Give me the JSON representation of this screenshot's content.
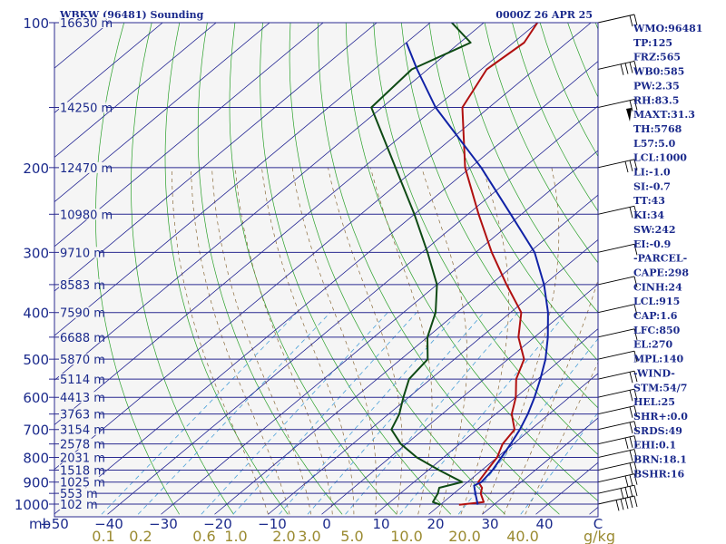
{
  "chart_data": {
    "type": "line",
    "chart_kind": "skew-t log-p sounding",
    "title_left": "WBKW (96481) Sounding",
    "title_right": "0000Z 26 APR 25",
    "pressure_axis_label": "mb",
    "pressure_ticks": [
      100,
      200,
      300,
      400,
      500,
      600,
      700,
      800,
      900,
      1000
    ],
    "pressure_range_mb": [
      1050,
      100
    ],
    "temperature_axis_unit": "C",
    "temperature_ticks": [
      -50,
      -40,
      -30,
      -20,
      -10,
      0,
      10,
      20,
      30,
      40
    ],
    "temperature_range_c": [
      -50,
      50
    ],
    "mixing_ratio_unit": "g/kg",
    "mixing_ratio_labels": [
      "0.1",
      "0.2",
      "0.6",
      "1.0",
      "2.0",
      "3.0",
      "5.0",
      "10.0",
      "20.0",
      "40.0"
    ],
    "height_labels": [
      {
        "p": 100,
        "text": "16630 m"
      },
      {
        "p": 150,
        "text": "14250 m"
      },
      {
        "p": 200,
        "text": "12470 m"
      },
      {
        "p": 250,
        "text": "10980 m"
      },
      {
        "p": 300,
        "text": "9710 m"
      },
      {
        "p": 350,
        "text": "8583 m"
      },
      {
        "p": 400,
        "text": "7590 m"
      },
      {
        "p": 450,
        "text": "6688 m"
      },
      {
        "p": 500,
        "text": "5870 m"
      },
      {
        "p": 550,
        "text": "5114 m"
      },
      {
        "p": 600,
        "text": "4413 m"
      },
      {
        "p": 650,
        "text": "3763 m"
      },
      {
        "p": 700,
        "text": "3154 m"
      },
      {
        "p": 750,
        "text": "2578 m"
      },
      {
        "p": 800,
        "text": "2031 m"
      },
      {
        "p": 850,
        "text": "1518 m"
      },
      {
        "p": 900,
        "text": "1025 m"
      },
      {
        "p": 950,
        "text": "553 m"
      },
      {
        "p": 1000,
        "text": "102 m"
      }
    ],
    "series": [
      {
        "role": "temperature",
        "color": "#b01010",
        "points": [
          [
            1003,
            23.5
          ],
          [
            990,
            27.5
          ],
          [
            950,
            25
          ],
          [
            925,
            24
          ],
          [
            900,
            22
          ],
          [
            850,
            21
          ],
          [
            800,
            20
          ],
          [
            750,
            18
          ],
          [
            700,
            17
          ],
          [
            650,
            13
          ],
          [
            600,
            10
          ],
          [
            550,
            6
          ],
          [
            500,
            3
          ],
          [
            450,
            -3
          ],
          [
            400,
            -8
          ],
          [
            350,
            -17
          ],
          [
            300,
            -27
          ],
          [
            250,
            -38
          ],
          [
            200,
            -51
          ],
          [
            150,
            -65
          ],
          [
            125,
            -69
          ],
          [
            110,
            -68
          ],
          [
            100,
            -70
          ]
        ]
      },
      {
        "role": "dewpoint",
        "color": "#0e4a14",
        "points": [
          [
            1003,
            20
          ],
          [
            990,
            18
          ],
          [
            950,
            17
          ],
          [
            925,
            16
          ],
          [
            900,
            19
          ],
          [
            850,
            12
          ],
          [
            800,
            5
          ],
          [
            750,
            -1
          ],
          [
            700,
            -6
          ],
          [
            650,
            -8
          ],
          [
            600,
            -11
          ],
          [
            550,
            -14
          ],
          [
            500,
            -15
          ],
          [
            450,
            -20
          ],
          [
            400,
            -24
          ],
          [
            350,
            -30
          ],
          [
            300,
            -39
          ],
          [
            250,
            -50
          ],
          [
            200,
            -64
          ],
          [
            150,
            -82
          ],
          [
            125,
            -83
          ],
          [
            110,
            -78
          ],
          [
            100,
            -86
          ]
        ]
      },
      {
        "role": "parcel",
        "color": "#1022a6",
        "points": [
          [
            1003,
            27
          ],
          [
            950,
            24
          ],
          [
            915,
            22
          ],
          [
            900,
            22.6
          ],
          [
            850,
            22
          ],
          [
            800,
            20.8
          ],
          [
            750,
            19.5
          ],
          [
            700,
            18
          ],
          [
            650,
            16
          ],
          [
            600,
            13.5
          ],
          [
            550,
            10.5
          ],
          [
            500,
            7
          ],
          [
            450,
            2.5
          ],
          [
            400,
            -3
          ],
          [
            350,
            -10
          ],
          [
            300,
            -19
          ],
          [
            250,
            -32
          ],
          [
            200,
            -48
          ],
          [
            150,
            -70
          ],
          [
            125,
            -82
          ],
          [
            110,
            -90
          ]
        ]
      }
    ]
  },
  "indices": [
    "WMO:96481",
    "TP:125",
    "FRZ:565",
    "WB0:585",
    "PW:2.35",
    "RH:83.5",
    "MAXT:31.3",
    "TH:5768",
    "L57:5.0",
    "LCL:1000",
    "LI:-1.0",
    "SI:-0.7",
    "TT:43",
    "KI:34",
    "SW:242",
    "EI:-0.9",
    "-PARCEL-",
    "CAPE:298",
    "CINH:24",
    "LCL:915",
    "CAP:1.6",
    "LFC:850",
    "EL:270",
    "MPL:140",
    "-WIND-",
    "STM:54/7",
    "HEL:25",
    "SHR+:0.0",
    "SRDS:49",
    "EHI:0.1",
    "BRN:18.1",
    "BSHR:16"
  ],
  "colors": {
    "isobar": "#2a2a90",
    "isotherm": "#1e2090",
    "dry_adiabat": "#2aa02a",
    "moist_adiabat": "#8a6a3a",
    "mixing_ratio": "#4aa0d8",
    "label_blue": "#1b2a8c",
    "mixing_label": "#9a8a30"
  },
  "wind_barbs_shown": true
}
